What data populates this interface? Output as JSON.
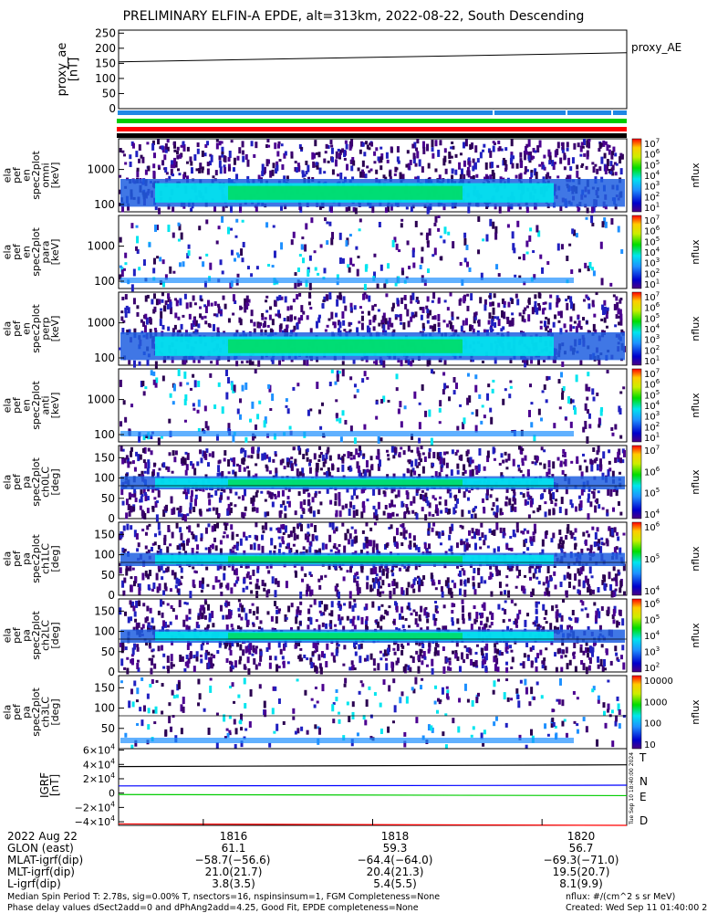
{
  "title": "PRELIMINARY ELFIN-A EPDE, alt=313km, 2022-08-22, South Descending",
  "colors": {
    "t_component": "#000000",
    "n_component": "#0000ff",
    "e_component": "#00cc00",
    "d_component": "#ff0000",
    "status_bar_blue": "#1e88e5",
    "status_bar_green": "#00cc00",
    "status_bar_red": "#ff0000"
  },
  "chart_data": [
    {
      "type": "line",
      "name": "proxy_ae",
      "ylabel": "proxy_ae\n[nT]",
      "yticks": [
        "250",
        "200",
        "150",
        "100",
        "50",
        "0"
      ],
      "ylim": [
        0,
        260
      ],
      "legend": "proxy_AE",
      "series": [
        {
          "name": "proxy_AE",
          "x": [
            "18:15:00",
            "18:21:00"
          ],
          "values": [
            155,
            185
          ]
        }
      ]
    },
    {
      "type": "heatmap",
      "name": "spectrograms",
      "colorbar_label": "nflux",
      "colorbar_units": "#/(cm^2 s sr MeV)",
      "panels": [
        {
          "ylabel": "ela\npef\nen\nspec2plot\nomni\n[keV]",
          "yticks": [
            "1000",
            "100"
          ],
          "cbar_ticks": [
            "10^7",
            "10^6",
            "10^5",
            "10^4",
            "10^3",
            "10^2",
            "10^1"
          ]
        },
        {
          "ylabel": "ela\npef\nen\nspec2plot\npara\n[keV]",
          "yticks": [
            "1000",
            "100"
          ],
          "cbar_ticks": [
            "10^7",
            "10^6",
            "10^5",
            "10^4",
            "10^3",
            "10^2",
            "10^1"
          ]
        },
        {
          "ylabel": "ela\npef\nen\nspec2plot\nperp\n[keV]",
          "yticks": [
            "1000",
            "100"
          ],
          "cbar_ticks": [
            "10^7",
            "10^6",
            "10^5",
            "10^4",
            "10^3",
            "10^2",
            "10^1"
          ]
        },
        {
          "ylabel": "ela\npef\nen\nspec2plot\nanti\n[keV]",
          "yticks": [
            "1000",
            "100"
          ],
          "cbar_ticks": [
            "10^7",
            "10^6",
            "10^5",
            "10^4",
            "10^3",
            "10^2",
            "10^1"
          ]
        },
        {
          "ylabel": "ela\npef\npa\nspec2plot\nch0LC\n[deg]",
          "yticks": [
            "150",
            "100",
            "50",
            "0"
          ],
          "cbar_ticks": [
            "10^7",
            "10^6",
            "10^5",
            "10^4"
          ]
        },
        {
          "ylabel": "ela\npef\npa\nspec2plot\nch1LC\n[deg]",
          "yticks": [
            "150",
            "100",
            "50",
            "0"
          ],
          "cbar_ticks": [
            "10^6",
            "10^5",
            "10^4"
          ]
        },
        {
          "ylabel": "ela\npef\npa\nspec2plot\nch2LC\n[deg]",
          "yticks": [
            "150",
            "100",
            "50",
            "0"
          ],
          "cbar_ticks": [
            "10^6",
            "10^5",
            "10^4",
            "10^3",
            "10^2"
          ]
        },
        {
          "ylabel": "ela\npef\npa\nspec2plot\nch3LC\n[deg]",
          "yticks": [
            "150",
            "100",
            "50"
          ],
          "cbar_ticks": [
            "10000",
            "1000",
            "100",
            "10"
          ]
        }
      ]
    },
    {
      "type": "line",
      "name": "igrf",
      "ylabel": "IGRF\n[nT]",
      "yticks": [
        "6×10^4",
        "4×10^4",
        "2×10^4",
        "0",
        "−2×10^4",
        "−4×10^4"
      ],
      "ylim": [
        -45000,
        62000
      ],
      "series": [
        {
          "name": "T",
          "x": [
            "18:15:00",
            "18:21:00"
          ],
          "values": [
            37000,
            39500
          ]
        },
        {
          "name": "N",
          "x": [
            "18:15:00",
            "18:21:00"
          ],
          "values": [
            10000,
            11000
          ]
        },
        {
          "name": "E",
          "x": [
            "18:15:00",
            "18:21:00"
          ],
          "values": [
            -2000,
            -3500
          ]
        },
        {
          "name": "D",
          "x": [
            "18:15:00",
            "18:21:00"
          ],
          "values": [
            -43000,
            -45000
          ]
        }
      ],
      "side_stamp": "Tue Sep 10 18:40:00 2024"
    }
  ],
  "axis_table": {
    "rows": [
      {
        "label": "2022 Aug 22",
        "values": [
          "1816",
          "1818",
          "1820"
        ]
      },
      {
        "label": "GLON (east)",
        "values": [
          "61.1",
          "59.3",
          "56.7"
        ]
      },
      {
        "label": "MLAT-igrf(dip)",
        "values": [
          "−58.7(−56.6)",
          "−64.4(−64.0)",
          "−69.3(−71.0)"
        ]
      },
      {
        "label": "MLT-igrf(dip)",
        "values": [
          "21.0(21.7)",
          "20.4(21.3)",
          "19.5(20.7)"
        ]
      },
      {
        "label": "L-igrf(dip)",
        "values": [
          "3.8(3.5)",
          "5.4(5.5)",
          "8.1(9.9)"
        ]
      }
    ]
  },
  "footer": {
    "line1": "Median Spin Period T: 2.78s, sig=0.00% T, nsectors=16, nspinsinsum=1, FGM Completeness=None",
    "line2": "Phase delay values dSect2add=0 and dPhAng2add=4.25, Good Fit, EPDE completeness=None",
    "units": "nflux: #/(cm^2 s sr MeV)",
    "created": "Created: Wed Sep 11 01:40:00 2024"
  }
}
